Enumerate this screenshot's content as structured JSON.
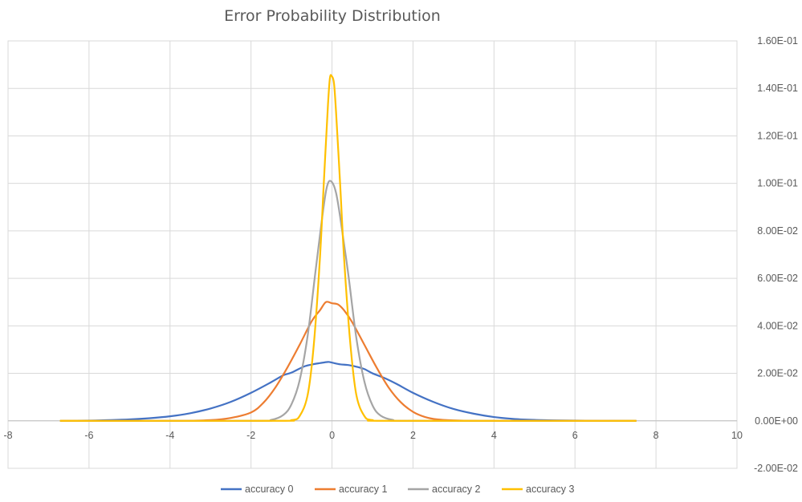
{
  "chart_data": {
    "type": "line",
    "title": "Error Probability Distribution",
    "xlabel": "",
    "ylabel": "",
    "xlim": [
      -8,
      10
    ],
    "ylim": [
      -0.02,
      0.16
    ],
    "x_ticks": [
      -8,
      -6,
      -4,
      -2,
      0,
      2,
      4,
      6,
      8,
      10
    ],
    "x_tick_labels": [
      "-8",
      "-6",
      "-4",
      "-2",
      "0",
      "2",
      "4",
      "6",
      "8",
      "10"
    ],
    "y_ticks": [
      -0.02,
      0,
      0.02,
      0.04,
      0.06,
      0.08,
      0.1,
      0.12,
      0.14,
      0.16
    ],
    "y_tick_labels": [
      "-2.00E-02",
      "0.00E+00",
      "2.00E-02",
      "4.00E-02",
      "6.00E-02",
      "8.00E-02",
      "1.00E-01",
      "1.20E-01",
      "1.40E-01",
      "1.60E-01"
    ],
    "grid": true,
    "legend_position": "bottom",
    "series": [
      {
        "name": "accuracy 0",
        "color": "#4472C4",
        "x": [
          -6.7,
          -6.0,
          -5.5,
          -5.0,
          -4.5,
          -4.0,
          -3.5,
          -3.0,
          -2.5,
          -2.0,
          -1.5,
          -1.2,
          -1.0,
          -0.7,
          -0.5,
          -0.3,
          -0.1,
          0.0,
          0.2,
          0.4,
          0.6,
          0.8,
          1.0,
          1.3,
          1.6,
          2.0,
          2.5,
          3.0,
          3.5,
          4.0,
          4.5,
          5.0,
          5.5,
          6.0,
          6.5,
          7.0,
          7.5
        ],
        "y": [
          0.0,
          0.0001,
          0.0003,
          0.0006,
          0.0011,
          0.0019,
          0.0032,
          0.0052,
          0.008,
          0.0118,
          0.0163,
          0.0192,
          0.0203,
          0.0228,
          0.0237,
          0.0243,
          0.0248,
          0.0245,
          0.0238,
          0.0235,
          0.0228,
          0.0218,
          0.02,
          0.018,
          0.0155,
          0.0118,
          0.008,
          0.005,
          0.003,
          0.0016,
          0.0008,
          0.0004,
          0.0002,
          0.0001,
          0.0,
          0.0,
          0.0
        ]
      },
      {
        "name": "accuracy 1",
        "color": "#ED7D31",
        "x": [
          -6.7,
          -4.0,
          -3.0,
          -2.5,
          -2.0,
          -1.7,
          -1.4,
          -1.1,
          -0.8,
          -0.5,
          -0.3,
          -0.15,
          0.0,
          0.15,
          0.3,
          0.5,
          0.8,
          1.1,
          1.4,
          1.7,
          2.0,
          2.3,
          2.6,
          3.0,
          3.5,
          4.5,
          7.5
        ],
        "y": [
          0.0,
          0.0,
          0.0003,
          0.0012,
          0.0035,
          0.0075,
          0.014,
          0.0225,
          0.032,
          0.042,
          0.0465,
          0.05,
          0.0495,
          0.049,
          0.0465,
          0.0415,
          0.032,
          0.0225,
          0.014,
          0.0078,
          0.0038,
          0.0016,
          0.0006,
          0.0002,
          0.0,
          0.0,
          0.0
        ]
      },
      {
        "name": "accuracy 2",
        "color": "#A5A5A5",
        "x": [
          -6.7,
          -2.0,
          -1.5,
          -1.2,
          -1.0,
          -0.8,
          -0.6,
          -0.4,
          -0.2,
          -0.1,
          0.0,
          0.1,
          0.2,
          0.4,
          0.6,
          0.8,
          1.0,
          1.2,
          1.5,
          2.0,
          7.5
        ],
        "y": [
          0.0,
          0.0,
          0.0004,
          0.0025,
          0.007,
          0.017,
          0.036,
          0.064,
          0.091,
          0.1,
          0.1005,
          0.096,
          0.086,
          0.062,
          0.035,
          0.0165,
          0.0065,
          0.0022,
          0.0004,
          0.0,
          0.0
        ]
      },
      {
        "name": "accuracy 3",
        "color": "#FFC000",
        "x": [
          -6.7,
          -1.5,
          -1.0,
          -0.8,
          -0.6,
          -0.45,
          -0.3,
          -0.2,
          -0.1,
          -0.05,
          0.0,
          0.05,
          0.1,
          0.2,
          0.3,
          0.45,
          0.6,
          0.8,
          1.0,
          1.5,
          7.5
        ],
        "y": [
          0.0,
          0.0,
          0.0003,
          0.002,
          0.011,
          0.032,
          0.068,
          0.101,
          0.133,
          0.1445,
          0.145,
          0.142,
          0.13,
          0.1,
          0.068,
          0.033,
          0.011,
          0.002,
          0.0003,
          0.0,
          0.0
        ]
      }
    ]
  }
}
